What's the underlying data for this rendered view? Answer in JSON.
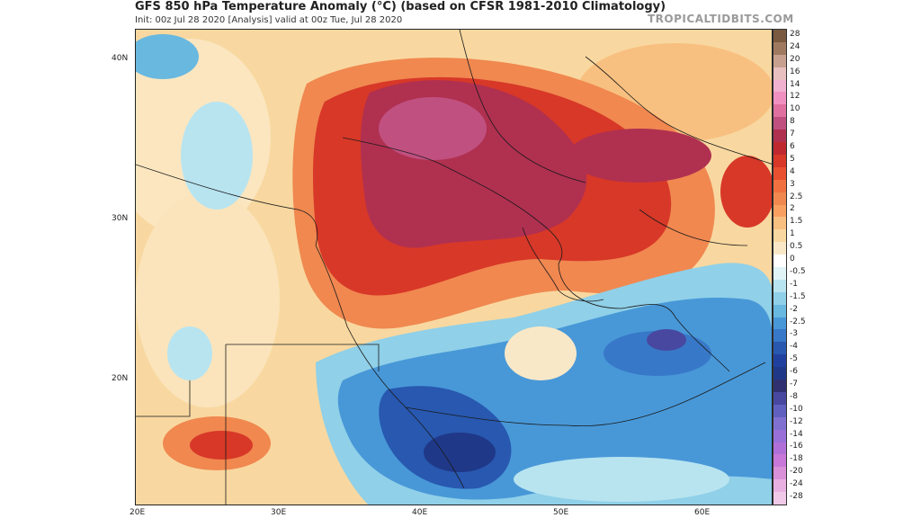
{
  "header": {
    "title": "GFS 850 hPa Temperature Anomaly (°C) (based on CFSR 1981-2010 Climatology)",
    "subtitle": "Init: 00z Jul 28 2020   [Analysis]   valid at 00z Tue, Jul 28 2020",
    "watermark": "TROPICALTIDBITS.COM"
  },
  "map": {
    "lat_labels": [
      {
        "text": "40N",
        "lat": 40
      },
      {
        "text": "30N",
        "lat": 30
      },
      {
        "text": "20N",
        "lat": 20
      }
    ],
    "lon_labels": [
      {
        "text": "20E",
        "lon": 20
      },
      {
        "text": "30E",
        "lon": 30
      },
      {
        "text": "40E",
        "lon": 40
      },
      {
        "text": "50E",
        "lon": 50
      },
      {
        "text": "60E",
        "lon": 60
      }
    ]
  },
  "colorbar": {
    "labels": [
      "28",
      "24",
      "20",
      "16",
      "14",
      "12",
      "10",
      "8",
      "7",
      "6",
      "5",
      "4",
      "3",
      "2.5",
      "2",
      "1.5",
      "1",
      "0.5",
      "0",
      "-0.5",
      "-1",
      "-1.5",
      "-2",
      "-2.5",
      "-3",
      "-4",
      "-5",
      "-6",
      "-7",
      "-8",
      "-10",
      "-12",
      "-14",
      "-16",
      "-18",
      "-20",
      "-24",
      "-28"
    ],
    "colors": [
      "#7a5a40",
      "#a07a60",
      "#c8a090",
      "#e8c0c0",
      "#f0b0d0",
      "#f090c0",
      "#e070a0",
      "#c05080",
      "#b03050",
      "#c02830",
      "#d83828",
      "#e85030",
      "#f07040",
      "#f08850",
      "#f8a060",
      "#f8c080",
      "#f8d8a0",
      "#f8e8c8",
      "#ffffff",
      "#e0f4f8",
      "#b8e4f0",
      "#90d0e8",
      "#68b8e0",
      "#4898d8",
      "#3878c8",
      "#2858b0",
      "#2040a0",
      "#203888",
      "#303070",
      "#4848a0",
      "#6060c0",
      "#8070d0",
      "#9870d8",
      "#b070d8",
      "#c878d8",
      "#d890d8",
      "#e8b0e0",
      "#f0c8e8"
    ]
  }
}
